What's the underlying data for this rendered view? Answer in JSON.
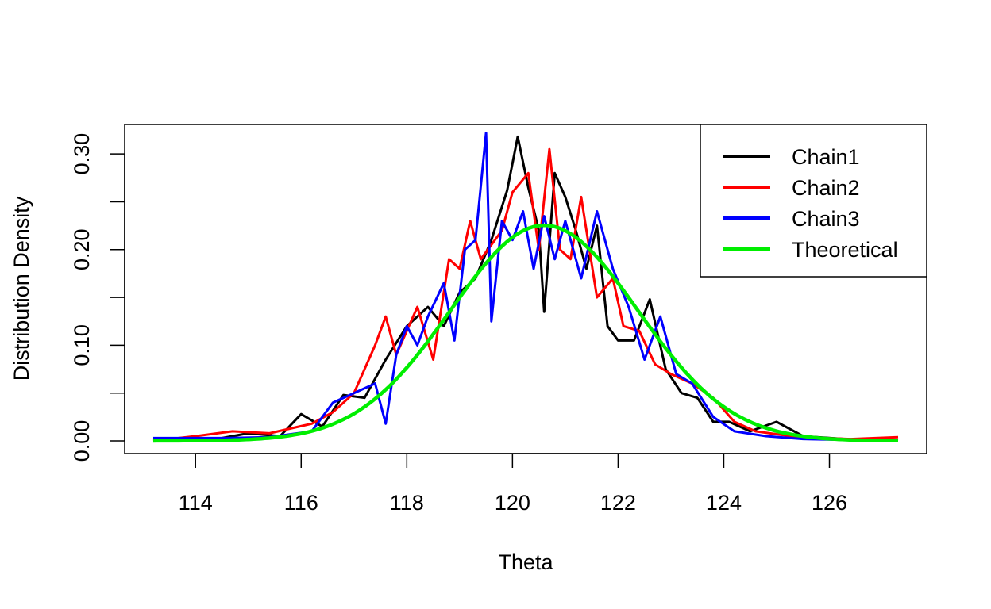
{
  "chart_data": {
    "type": "line",
    "title": "",
    "xlabel": "Theta",
    "ylabel": "Distribution Density",
    "xlim": [
      113.2,
      127.3
    ],
    "ylim": [
      0.0,
      0.325
    ],
    "xticks": [
      114,
      116,
      118,
      120,
      122,
      124,
      126
    ],
    "yticks": [
      0.0,
      0.05,
      0.1,
      0.15,
      0.2,
      0.25,
      0.3
    ],
    "ytick_labels": [
      "0.00",
      "",
      "0.10",
      "",
      "0.20",
      "",
      "0.30"
    ],
    "grid": false,
    "legend_position": "top-right",
    "theoretical_distribution": {
      "mean": 120.6,
      "sd": 1.77
    },
    "series": [
      {
        "name": "Chain1",
        "color": "#000000",
        "points": [
          [
            113.2,
            0.002
          ],
          [
            114.4,
            0.002
          ],
          [
            115.0,
            0.008
          ],
          [
            115.6,
            0.005
          ],
          [
            116.0,
            0.028
          ],
          [
            116.4,
            0.015
          ],
          [
            116.8,
            0.048
          ],
          [
            117.2,
            0.045
          ],
          [
            117.6,
            0.085
          ],
          [
            118.0,
            0.12
          ],
          [
            118.4,
            0.14
          ],
          [
            118.7,
            0.12
          ],
          [
            119.0,
            0.155
          ],
          [
            119.3,
            0.17
          ],
          [
            119.6,
            0.21
          ],
          [
            119.9,
            0.262
          ],
          [
            120.1,
            0.318
          ],
          [
            120.3,
            0.265
          ],
          [
            120.5,
            0.22
          ],
          [
            120.6,
            0.135
          ],
          [
            120.8,
            0.28
          ],
          [
            121.0,
            0.255
          ],
          [
            121.2,
            0.22
          ],
          [
            121.4,
            0.18
          ],
          [
            121.6,
            0.225
          ],
          [
            121.8,
            0.12
          ],
          [
            122.0,
            0.105
          ],
          [
            122.3,
            0.105
          ],
          [
            122.6,
            0.148
          ],
          [
            122.9,
            0.075
          ],
          [
            123.2,
            0.05
          ],
          [
            123.5,
            0.045
          ],
          [
            123.8,
            0.02
          ],
          [
            124.1,
            0.02
          ],
          [
            124.5,
            0.01
          ],
          [
            125.0,
            0.02
          ],
          [
            125.5,
            0.005
          ],
          [
            126.3,
            0.002
          ],
          [
            127.3,
            0.0
          ]
        ]
      },
      {
        "name": "Chain2",
        "color": "#ff0000",
        "points": [
          [
            113.2,
            0.0
          ],
          [
            114.0,
            0.005
          ],
          [
            114.7,
            0.01
          ],
          [
            115.4,
            0.008
          ],
          [
            116.2,
            0.018
          ],
          [
            116.6,
            0.03
          ],
          [
            117.0,
            0.05
          ],
          [
            117.4,
            0.1
          ],
          [
            117.6,
            0.13
          ],
          [
            117.8,
            0.09
          ],
          [
            118.2,
            0.14
          ],
          [
            118.5,
            0.085
          ],
          [
            118.8,
            0.19
          ],
          [
            119.0,
            0.18
          ],
          [
            119.2,
            0.23
          ],
          [
            119.4,
            0.19
          ],
          [
            119.8,
            0.22
          ],
          [
            120.0,
            0.26
          ],
          [
            120.3,
            0.28
          ],
          [
            120.5,
            0.2
          ],
          [
            120.7,
            0.305
          ],
          [
            120.9,
            0.2
          ],
          [
            121.1,
            0.19
          ],
          [
            121.3,
            0.255
          ],
          [
            121.6,
            0.15
          ],
          [
            121.9,
            0.17
          ],
          [
            122.1,
            0.12
          ],
          [
            122.4,
            0.115
          ],
          [
            122.7,
            0.08
          ],
          [
            123.0,
            0.07
          ],
          [
            123.4,
            0.06
          ],
          [
            123.8,
            0.045
          ],
          [
            124.2,
            0.02
          ],
          [
            124.6,
            0.01
          ],
          [
            125.4,
            0.004
          ],
          [
            126.4,
            0.002
          ],
          [
            127.3,
            0.004
          ]
        ]
      },
      {
        "name": "Chain3",
        "color": "#0000ff",
        "points": [
          [
            113.2,
            0.003
          ],
          [
            114.6,
            0.003
          ],
          [
            115.4,
            0.004
          ],
          [
            116.2,
            0.01
          ],
          [
            116.6,
            0.04
          ],
          [
            117.0,
            0.05
          ],
          [
            117.4,
            0.06
          ],
          [
            117.6,
            0.018
          ],
          [
            117.8,
            0.09
          ],
          [
            118.0,
            0.12
          ],
          [
            118.2,
            0.1
          ],
          [
            118.4,
            0.13
          ],
          [
            118.7,
            0.165
          ],
          [
            118.9,
            0.105
          ],
          [
            119.1,
            0.2
          ],
          [
            119.3,
            0.21
          ],
          [
            119.5,
            0.322
          ],
          [
            119.6,
            0.125
          ],
          [
            119.8,
            0.23
          ],
          [
            120.0,
            0.21
          ],
          [
            120.2,
            0.24
          ],
          [
            120.4,
            0.18
          ],
          [
            120.6,
            0.235
          ],
          [
            120.8,
            0.19
          ],
          [
            121.0,
            0.23
          ],
          [
            121.3,
            0.17
          ],
          [
            121.6,
            0.24
          ],
          [
            121.9,
            0.18
          ],
          [
            122.2,
            0.14
          ],
          [
            122.5,
            0.085
          ],
          [
            122.8,
            0.13
          ],
          [
            123.1,
            0.07
          ],
          [
            123.4,
            0.06
          ],
          [
            123.8,
            0.025
          ],
          [
            124.2,
            0.01
          ],
          [
            124.8,
            0.005
          ],
          [
            125.5,
            0.002
          ],
          [
            127.3,
            0.0
          ]
        ]
      },
      {
        "name": "Theoretical",
        "color": "#00ee00",
        "points": []
      }
    ]
  }
}
